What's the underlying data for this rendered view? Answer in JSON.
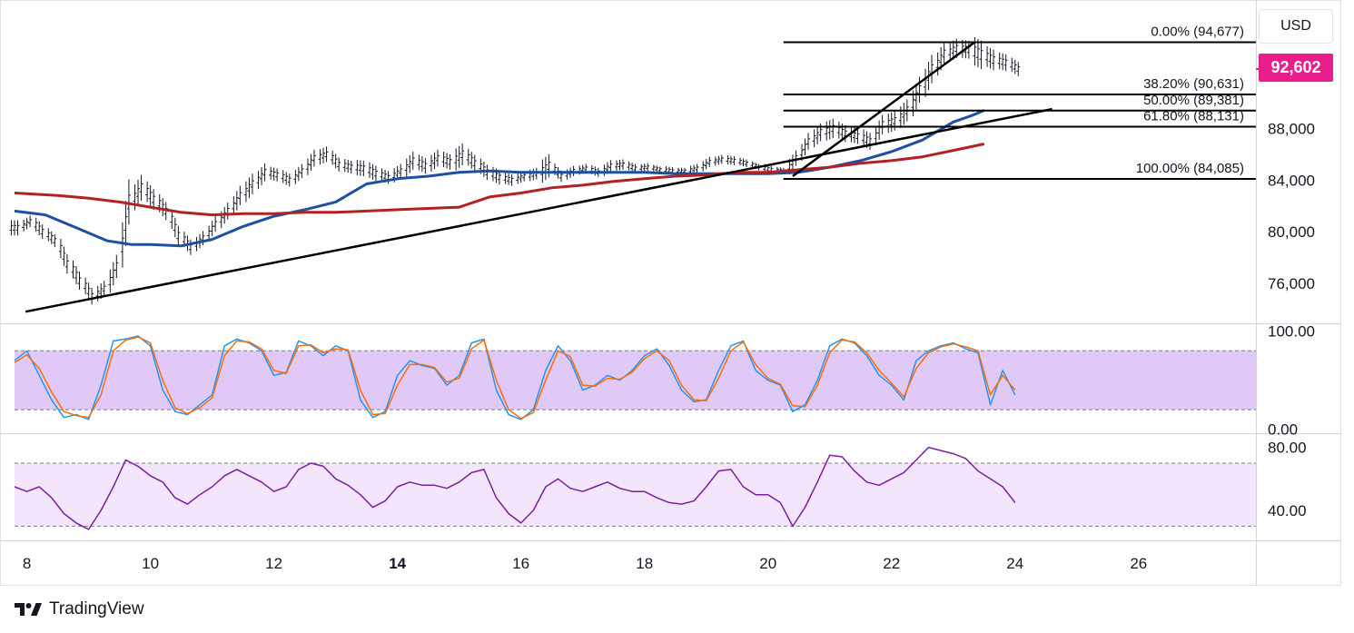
{
  "header": {
    "currency": "USD"
  },
  "last_price": {
    "label": "92,602",
    "value": 92602,
    "color": "#e91e8c"
  },
  "branding": {
    "name": "TradingView"
  },
  "chart_data": [
    {
      "type": "line",
      "panel": "price",
      "x_range": [
        7.8,
        27.9
      ],
      "xticks": [
        8,
        10,
        12,
        14,
        16,
        18,
        20,
        22,
        24,
        26
      ],
      "xtick_labels": [
        "8",
        "10",
        "12",
        "14",
        "16",
        "18",
        "20",
        "22",
        "24",
        "26"
      ],
      "xtick_bold": [
        "14"
      ],
      "ylim": [
        72900,
        97600
      ],
      "yticks": [
        76000,
        80000,
        84000,
        88000
      ],
      "ytick_labels": [
        "76,000",
        "80,000",
        "84,000",
        "88,000"
      ],
      "series": [
        {
          "type": "ohlc_bars",
          "color": "#131722",
          "x": [
            7.8,
            8.0,
            8.2,
            8.4,
            8.6,
            8.8,
            9.0,
            9.2,
            9.4,
            9.6,
            9.8,
            10.0,
            10.2,
            10.4,
            10.6,
            10.8,
            11.0,
            11.2,
            11.4,
            11.6,
            11.8,
            12.0,
            12.2,
            12.4,
            12.6,
            12.8,
            13.0,
            13.2,
            13.4,
            13.6,
            13.8,
            14.0,
            14.2,
            14.4,
            14.6,
            14.8,
            15.0,
            15.2,
            15.4,
            15.6,
            15.8,
            16.0,
            16.2,
            16.4,
            16.6,
            16.8,
            17.0,
            17.2,
            17.4,
            17.6,
            17.8,
            18.0,
            18.2,
            18.4,
            18.6,
            18.8,
            19.0,
            19.2,
            19.4,
            19.6,
            19.8,
            20.0,
            20.2,
            20.4,
            20.6,
            20.8,
            21.0,
            21.2,
            21.4,
            21.6,
            21.8,
            22.0,
            22.2,
            22.4,
            22.6,
            22.8,
            23.0,
            23.2,
            23.4,
            23.6,
            23.8,
            24.0
          ],
          "close": [
            80300,
            80800,
            80000,
            79300,
            77500,
            76200,
            75000,
            75600,
            77300,
            82300,
            83400,
            82500,
            81600,
            79700,
            78800,
            79500,
            80600,
            81600,
            82800,
            83700,
            84600,
            84400,
            84000,
            84700,
            85700,
            86000,
            85200,
            85000,
            84900,
            84500,
            84200,
            84700,
            85500,
            85100,
            85700,
            85400,
            86000,
            85300,
            84600,
            84200,
            84000,
            84300,
            84500,
            85100,
            84300,
            84700,
            84900,
            84600,
            85100,
            85200,
            84900,
            85000,
            84800,
            84700,
            84700,
            84900,
            85400,
            85600,
            85500,
            85300,
            85000,
            84800,
            84700,
            85700,
            87000,
            87700,
            88000,
            87600,
            87400,
            87000,
            88300,
            88600,
            89400,
            91000,
            92600,
            93800,
            94200,
            94100,
            93700,
            93300,
            93100,
            92600
          ],
          "range": [
            1200,
            900,
            1100,
            1000,
            1500,
            1400,
            1300,
            1200,
            1800,
            3500,
            2000,
            1600,
            1400,
            1500,
            1200,
            1100,
            1200,
            1300,
            1500,
            1600,
            1400,
            1000,
            1000,
            1100,
            1300,
            1200,
            1100,
            1000,
            1200,
            1200,
            1000,
            1100,
            1400,
            1200,
            1300,
            1200,
            1700,
            1300,
            1200,
            1100,
            900,
            800,
            900,
            1800,
            900,
            800,
            700,
            700,
            900,
            800,
            700,
            600,
            500,
            600,
            500,
            700,
            800,
            700,
            700,
            600,
            500,
            600,
            500,
            1200,
            1300,
            1400,
            1500,
            1300,
            1200,
            1300,
            1500,
            1500,
            1700,
            2000,
            2200,
            1800,
            1500,
            1400,
            2200,
            1600,
            1300,
            1100
          ]
        },
        {
          "name": "",
          "type": "line",
          "color": "#1e4fa3",
          "x": [
            7.8,
            8.3,
            8.8,
            9.3,
            9.7,
            10.0,
            10.5,
            11.0,
            11.5,
            12.0,
            12.5,
            13.0,
            13.5,
            14.0,
            14.5,
            15.0,
            15.5,
            16.0,
            16.5,
            17.0,
            17.5,
            18.0,
            18.5,
            19.0,
            19.5,
            20.0,
            20.5,
            21.0,
            21.5,
            22.0,
            22.5,
            23.0,
            23.3,
            23.5
          ],
          "y": [
            81600,
            81300,
            80300,
            79300,
            79000,
            79000,
            78900,
            79400,
            80400,
            81200,
            81700,
            82300,
            83700,
            84100,
            84300,
            84600,
            84700,
            84600,
            84600,
            84600,
            84600,
            84600,
            84500,
            84500,
            84500,
            84500,
            84600,
            85000,
            85500,
            86200,
            87100,
            88500,
            89000,
            89400
          ]
        },
        {
          "name": "",
          "type": "line",
          "color": "#b22222",
          "x": [
            7.8,
            8.5,
            9.0,
            9.5,
            10.0,
            10.5,
            11.0,
            11.5,
            12.0,
            12.5,
            13.0,
            13.5,
            14.0,
            14.5,
            15.0,
            15.5,
            16.0,
            16.5,
            17.0,
            17.5,
            18.0,
            18.5,
            19.0,
            19.5,
            20.0,
            20.5,
            21.0,
            21.5,
            22.0,
            22.5,
            23.0,
            23.5
          ],
          "y": [
            83000,
            82800,
            82600,
            82300,
            81900,
            81500,
            81300,
            81400,
            81400,
            81500,
            81500,
            81600,
            81700,
            81800,
            81900,
            82700,
            83000,
            83400,
            83600,
            83900,
            84100,
            84300,
            84400,
            84600,
            84600,
            84800,
            85000,
            85300,
            85500,
            85800,
            86300,
            86800
          ]
        },
        {
          "name": "",
          "type": "trendline",
          "color": "#000000",
          "x": [
            7.98,
            24.6
          ],
          "y": [
            73800,
            89500
          ]
        },
        {
          "name": "",
          "type": "trendline",
          "color": "#000000",
          "x": [
            20.4,
            23.35
          ],
          "y": [
            84300,
            94700
          ]
        }
      ],
      "fibonacci": {
        "x_start": 20.25,
        "x_end": 27.9,
        "color": "#000000",
        "levels": [
          {
            "ratio_label": "0.00%",
            "price_label": "94,677",
            "value": 94677
          },
          {
            "ratio_label": "38.20%",
            "price_label": "90,631",
            "value": 90631
          },
          {
            "ratio_label": "50.00%",
            "price_label": "89,381",
            "value": 89381
          },
          {
            "ratio_label": "61.80%",
            "price_label": "88,131",
            "value": 88131
          },
          {
            "ratio_label": "100.00%",
            "price_label": "84,085",
            "value": 84085
          }
        ]
      },
      "grid": false
    },
    {
      "type": "line",
      "panel": "stochastic",
      "x_range": [
        7.8,
        27.9
      ],
      "ylim": [
        -4,
        108
      ],
      "yticks": [
        0,
        100
      ],
      "ytick_labels": [
        "0.00",
        "100.00"
      ],
      "band": {
        "upper": 80,
        "lower": 20,
        "color": "#e1c9f7"
      },
      "series": [
        {
          "name": "",
          "color": "#2196f3",
          "x": [
            7.8,
            8.0,
            8.2,
            8.4,
            8.6,
            8.8,
            9.0,
            9.2,
            9.4,
            9.6,
            9.8,
            10.0,
            10.2,
            10.4,
            10.6,
            10.8,
            11.0,
            11.2,
            11.4,
            11.6,
            11.8,
            12.0,
            12.2,
            12.4,
            12.6,
            12.8,
            13.0,
            13.2,
            13.4,
            13.6,
            13.8,
            14.0,
            14.2,
            14.4,
            14.6,
            14.8,
            15.0,
            15.2,
            15.4,
            15.6,
            15.8,
            16.0,
            16.2,
            16.4,
            16.6,
            16.8,
            17.0,
            17.2,
            17.4,
            17.6,
            17.8,
            18.0,
            18.2,
            18.4,
            18.6,
            18.8,
            19.0,
            19.2,
            19.4,
            19.6,
            19.8,
            20.0,
            20.2,
            20.4,
            20.6,
            20.8,
            21.0,
            21.2,
            21.4,
            21.6,
            21.8,
            22.0,
            22.2,
            22.4,
            22.6,
            22.8,
            23.0,
            23.2,
            23.4,
            23.6,
            23.8,
            24.0
          ],
          "y": [
            70,
            80,
            55,
            30,
            12,
            15,
            10,
            45,
            90,
            92,
            95,
            85,
            40,
            18,
            15,
            25,
            35,
            85,
            92,
            88,
            80,
            55,
            58,
            90,
            85,
            75,
            85,
            80,
            30,
            12,
            18,
            55,
            70,
            65,
            62,
            45,
            55,
            88,
            92,
            40,
            15,
            10,
            20,
            60,
            85,
            70,
            40,
            45,
            55,
            50,
            60,
            75,
            82,
            65,
            40,
            28,
            30,
            60,
            85,
            90,
            60,
            50,
            45,
            18,
            25,
            50,
            85,
            92,
            88,
            75,
            55,
            45,
            30,
            70,
            80,
            85,
            88,
            82,
            78,
            25,
            60,
            35
          ]
        },
        {
          "name": "",
          "color": "#ff6d00",
          "x": [
            7.8,
            8.0,
            8.2,
            8.4,
            8.6,
            8.8,
            9.0,
            9.2,
            9.4,
            9.6,
            9.8,
            10.0,
            10.2,
            10.4,
            10.6,
            10.8,
            11.0,
            11.2,
            11.4,
            11.6,
            11.8,
            12.0,
            12.2,
            12.4,
            12.6,
            12.8,
            13.0,
            13.2,
            13.4,
            13.6,
            13.8,
            14.0,
            14.2,
            14.4,
            14.6,
            14.8,
            15.0,
            15.2,
            15.4,
            15.6,
            15.8,
            16.0,
            16.2,
            16.4,
            16.6,
            16.8,
            17.0,
            17.2,
            17.4,
            17.6,
            17.8,
            18.0,
            18.2,
            18.4,
            18.6,
            18.8,
            19.0,
            19.2,
            19.4,
            19.6,
            19.8,
            20.0,
            20.2,
            20.4,
            20.6,
            20.8,
            21.0,
            21.2,
            21.4,
            21.6,
            21.8,
            22.0,
            22.2,
            22.4,
            22.6,
            22.8,
            23.0,
            23.2,
            23.4,
            23.6,
            23.8,
            24.0
          ],
          "y": [
            68,
            76,
            62,
            38,
            18,
            14,
            12,
            35,
            80,
            91,
            94,
            88,
            50,
            22,
            16,
            22,
            32,
            75,
            90,
            89,
            82,
            60,
            57,
            85,
            86,
            78,
            82,
            81,
            40,
            15,
            16,
            45,
            66,
            66,
            63,
            48,
            52,
            82,
            91,
            50,
            20,
            11,
            17,
            50,
            80,
            74,
            45,
            44,
            52,
            51,
            58,
            72,
            80,
            70,
            45,
            30,
            29,
            52,
            80,
            89,
            66,
            52,
            46,
            24,
            23,
            45,
            78,
            91,
            89,
            78,
            60,
            47,
            33,
            62,
            78,
            84,
            87,
            84,
            80,
            35,
            55,
            40
          ]
        }
      ],
      "grid": false
    },
    {
      "type": "line",
      "panel": "rsi",
      "x_range": [
        7.8,
        27.9
      ],
      "ylim": [
        21,
        89
      ],
      "yticks": [
        40,
        80
      ],
      "ytick_labels": [
        "40.00",
        "80.00"
      ],
      "band": {
        "upper": 70,
        "lower": 30,
        "color": "#f3e5fc"
      },
      "series": [
        {
          "name": "",
          "color": "#7b1fa2",
          "x": [
            7.8,
            8.0,
            8.2,
            8.4,
            8.6,
            8.8,
            9.0,
            9.2,
            9.4,
            9.6,
            9.8,
            10.0,
            10.2,
            10.4,
            10.6,
            10.8,
            11.0,
            11.2,
            11.4,
            11.6,
            11.8,
            12.0,
            12.2,
            12.4,
            12.6,
            12.8,
            13.0,
            13.2,
            13.4,
            13.6,
            13.8,
            14.0,
            14.2,
            14.4,
            14.6,
            14.8,
            15.0,
            15.2,
            15.4,
            15.6,
            15.8,
            16.0,
            16.2,
            16.4,
            16.6,
            16.8,
            17.0,
            17.2,
            17.4,
            17.6,
            17.8,
            18.0,
            18.2,
            18.4,
            18.6,
            18.8,
            19.0,
            19.2,
            19.4,
            19.6,
            19.8,
            20.0,
            20.2,
            20.4,
            20.6,
            20.8,
            21.0,
            21.2,
            21.4,
            21.6,
            21.8,
            22.0,
            22.2,
            22.4,
            22.6,
            22.8,
            23.0,
            23.2,
            23.4,
            23.6,
            23.8,
            24.0
          ],
          "y": [
            55,
            52,
            55,
            48,
            38,
            32,
            28,
            40,
            55,
            72,
            68,
            62,
            58,
            48,
            44,
            50,
            55,
            62,
            66,
            62,
            58,
            52,
            55,
            66,
            70,
            68,
            60,
            56,
            50,
            42,
            46,
            55,
            58,
            56,
            56,
            54,
            58,
            64,
            66,
            48,
            38,
            32,
            40,
            55,
            60,
            54,
            52,
            55,
            58,
            54,
            52,
            52,
            48,
            45,
            44,
            46,
            55,
            65,
            66,
            55,
            50,
            50,
            45,
            30,
            42,
            58,
            75,
            74,
            65,
            58,
            56,
            60,
            64,
            72,
            80,
            78,
            76,
            73,
            65,
            60,
            55,
            45
          ]
        }
      ],
      "grid": false
    }
  ]
}
